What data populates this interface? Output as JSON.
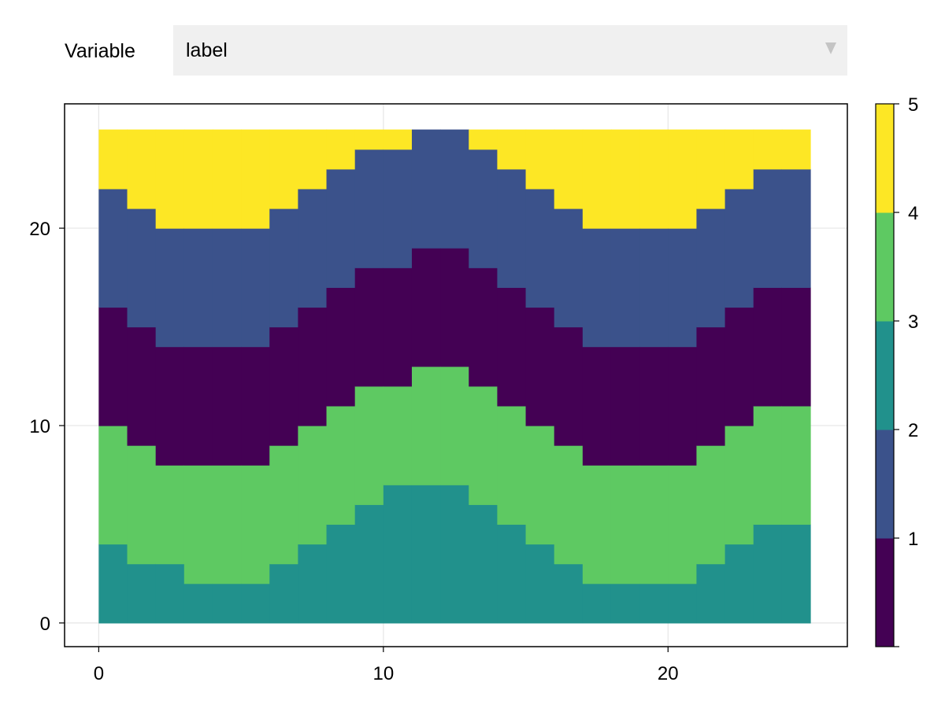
{
  "control": {
    "label": "Variable",
    "selected": "label",
    "arrow_icon": "triangle-down-icon"
  },
  "chart_data": {
    "type": "heatmap",
    "title": "",
    "xlabel": "",
    "ylabel": "",
    "grid": true,
    "x": [
      0,
      25
    ],
    "y": [
      0,
      25
    ],
    "xlim": [
      -1.2,
      26.3
    ],
    "ylim": [
      -1.2,
      26.3
    ],
    "x_ticks": [
      0,
      10,
      20
    ],
    "y_ticks": [
      0,
      10,
      20
    ],
    "colormap": "viridis (categorical)",
    "label_colors": {
      "1": "#440154",
      "2": "#3b528b",
      "3": "#21918c",
      "4": "#5ec962",
      "5": "#fde725"
    },
    "boundaries": {
      "x_columns": [
        0,
        1,
        2,
        3,
        4,
        5,
        6,
        7,
        8,
        9,
        10,
        11,
        12,
        13,
        14,
        15,
        16,
        17,
        18,
        19,
        20,
        21,
        22,
        23,
        24
      ],
      "label3_top": [
        4,
        3,
        3,
        2,
        2,
        2,
        3,
        4,
        5,
        6,
        7,
        7,
        7,
        6,
        5,
        4,
        3,
        2,
        2,
        2,
        2,
        3,
        4,
        5,
        5
      ],
      "label4_top": [
        10,
        9,
        8,
        8,
        8,
        8,
        9,
        10,
        11,
        12,
        12,
        13,
        13,
        12,
        11,
        10,
        9,
        8,
        8,
        8,
        8,
        9,
        10,
        11,
        11
      ],
      "label1_top": [
        16,
        15,
        14,
        14,
        14,
        14,
        15,
        16,
        17,
        18,
        18,
        19,
        19,
        18,
        17,
        16,
        15,
        14,
        14,
        14,
        14,
        15,
        16,
        17,
        17
      ],
      "label2_top": [
        22,
        21,
        20,
        20,
        20,
        20,
        21,
        22,
        23,
        24,
        24,
        25,
        25,
        24,
        23,
        22,
        21,
        20,
        20,
        20,
        20,
        21,
        22,
        23,
        23
      ]
    },
    "colorbar": {
      "ticks": [
        "5",
        "4",
        "3",
        "2",
        "1"
      ],
      "colors": [
        "#440154",
        "#3b528b",
        "#21918c",
        "#5ec962",
        "#fde725"
      ]
    }
  }
}
